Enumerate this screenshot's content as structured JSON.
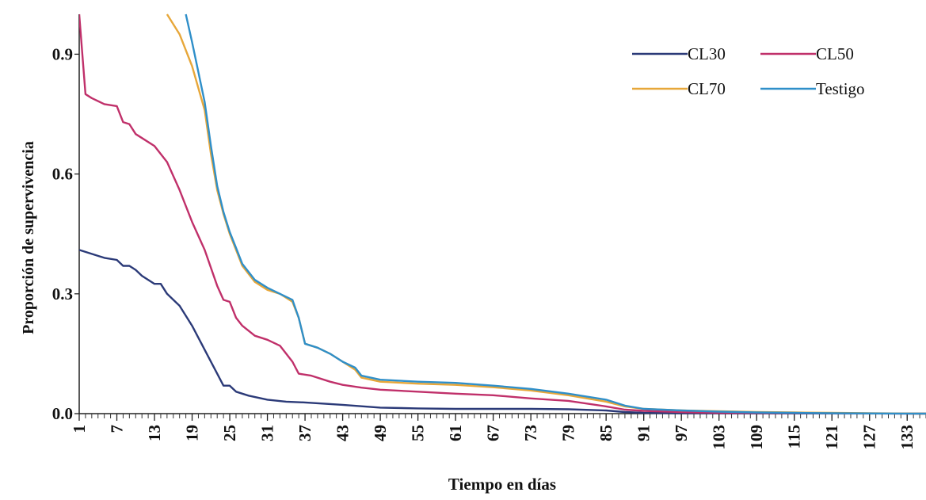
{
  "chart_data": {
    "type": "line",
    "xlabel": "Tiempo en días",
    "ylabel": "Proporción de supervivencia",
    "ylim": [
      0,
      1.0
    ],
    "xlim": [
      1,
      136
    ],
    "y_ticks": [
      0.0,
      0.3,
      0.6,
      0.9
    ],
    "y_tick_labels": [
      "0.0",
      "0.3",
      "0.6",
      "0.9"
    ],
    "x_ticks": [
      1,
      7,
      13,
      19,
      25,
      31,
      37,
      43,
      49,
      55,
      61,
      67,
      73,
      79,
      85,
      91,
      97,
      103,
      109,
      115,
      121,
      127,
      133
    ],
    "x_tick_labels": [
      "1",
      "7",
      "13",
      "19",
      "25",
      "31",
      "37",
      "43",
      "49",
      "55",
      "61",
      "67",
      "73",
      "79",
      "85",
      "91",
      "97",
      "103",
      "109",
      "115",
      "121",
      "127",
      "133"
    ],
    "grid": false,
    "legend_position": "top-right",
    "series": [
      {
        "name": "CL30",
        "color": "#2b3a78",
        "points": [
          [
            1,
            0.41
          ],
          [
            3,
            0.4
          ],
          [
            5,
            0.39
          ],
          [
            7,
            0.385
          ],
          [
            8,
            0.37
          ],
          [
            9,
            0.37
          ],
          [
            10,
            0.36
          ],
          [
            11,
            0.345
          ],
          [
            13,
            0.325
          ],
          [
            14,
            0.325
          ],
          [
            15,
            0.3
          ],
          [
            17,
            0.27
          ],
          [
            19,
            0.22
          ],
          [
            21,
            0.16
          ],
          [
            23,
            0.1
          ],
          [
            24,
            0.07
          ],
          [
            25,
            0.07
          ],
          [
            26,
            0.055
          ],
          [
            28,
            0.045
          ],
          [
            31,
            0.035
          ],
          [
            34,
            0.03
          ],
          [
            37,
            0.028
          ],
          [
            43,
            0.022
          ],
          [
            49,
            0.015
          ],
          [
            55,
            0.013
          ],
          [
            61,
            0.012
          ],
          [
            67,
            0.012
          ],
          [
            73,
            0.012
          ],
          [
            79,
            0.011
          ],
          [
            85,
            0.008
          ],
          [
            88,
            0.004
          ],
          [
            91,
            0.002
          ],
          [
            97,
            0.001
          ],
          [
            136,
            0.0
          ]
        ]
      },
      {
        "name": "CL50",
        "color": "#c0306a",
        "points": [
          [
            1,
            1.0
          ],
          [
            2,
            0.8
          ],
          [
            3,
            0.79
          ],
          [
            5,
            0.775
          ],
          [
            7,
            0.77
          ],
          [
            8,
            0.73
          ],
          [
            9,
            0.725
          ],
          [
            10,
            0.7
          ],
          [
            11,
            0.69
          ],
          [
            13,
            0.67
          ],
          [
            15,
            0.63
          ],
          [
            17,
            0.56
          ],
          [
            19,
            0.48
          ],
          [
            21,
            0.41
          ],
          [
            23,
            0.32
          ],
          [
            24,
            0.285
          ],
          [
            25,
            0.28
          ],
          [
            26,
            0.24
          ],
          [
            27,
            0.22
          ],
          [
            29,
            0.195
          ],
          [
            31,
            0.185
          ],
          [
            33,
            0.17
          ],
          [
            35,
            0.13
          ],
          [
            36,
            0.1
          ],
          [
            38,
            0.095
          ],
          [
            41,
            0.08
          ],
          [
            43,
            0.072
          ],
          [
            46,
            0.065
          ],
          [
            49,
            0.06
          ],
          [
            55,
            0.055
          ],
          [
            61,
            0.05
          ],
          [
            67,
            0.046
          ],
          [
            73,
            0.038
          ],
          [
            79,
            0.032
          ],
          [
            85,
            0.018
          ],
          [
            88,
            0.01
          ],
          [
            91,
            0.007
          ],
          [
            97,
            0.004
          ],
          [
            103,
            0.002
          ],
          [
            136,
            0.0
          ]
        ]
      },
      {
        "name": "CL70",
        "color": "#e7a73a",
        "points": [
          [
            15,
            1.0
          ],
          [
            17,
            0.95
          ],
          [
            19,
            0.87
          ],
          [
            21,
            0.76
          ],
          [
            22,
            0.65
          ],
          [
            23,
            0.56
          ],
          [
            24,
            0.5
          ],
          [
            25,
            0.45
          ],
          [
            26,
            0.41
          ],
          [
            27,
            0.37
          ],
          [
            29,
            0.33
          ],
          [
            31,
            0.31
          ],
          [
            33,
            0.3
          ],
          [
            35,
            0.28
          ],
          [
            36,
            0.24
          ],
          [
            37,
            0.175
          ],
          [
            39,
            0.165
          ],
          [
            41,
            0.15
          ],
          [
            43,
            0.13
          ],
          [
            45,
            0.11
          ],
          [
            46,
            0.09
          ],
          [
            49,
            0.08
          ],
          [
            55,
            0.075
          ],
          [
            61,
            0.072
          ],
          [
            67,
            0.066
          ],
          [
            73,
            0.058
          ],
          [
            79,
            0.046
          ],
          [
            85,
            0.03
          ],
          [
            88,
            0.018
          ],
          [
            91,
            0.012
          ],
          [
            97,
            0.008
          ],
          [
            103,
            0.006
          ],
          [
            109,
            0.004
          ],
          [
            115,
            0.003
          ],
          [
            121,
            0.002
          ],
          [
            127,
            0.001
          ],
          [
            136,
            0.0
          ]
        ]
      },
      {
        "name": "Testigo",
        "color": "#2f8fc9",
        "points": [
          [
            18,
            1.0
          ],
          [
            19,
            0.93
          ],
          [
            21,
            0.78
          ],
          [
            22,
            0.67
          ],
          [
            23,
            0.57
          ],
          [
            24,
            0.505
          ],
          [
            25,
            0.455
          ],
          [
            26,
            0.415
          ],
          [
            27,
            0.375
          ],
          [
            29,
            0.335
          ],
          [
            31,
            0.315
          ],
          [
            33,
            0.3
          ],
          [
            35,
            0.285
          ],
          [
            36,
            0.24
          ],
          [
            37,
            0.175
          ],
          [
            39,
            0.165
          ],
          [
            41,
            0.15
          ],
          [
            43,
            0.13
          ],
          [
            45,
            0.115
          ],
          [
            46,
            0.095
          ],
          [
            49,
            0.085
          ],
          [
            55,
            0.08
          ],
          [
            61,
            0.077
          ],
          [
            67,
            0.07
          ],
          [
            73,
            0.062
          ],
          [
            79,
            0.05
          ],
          [
            85,
            0.035
          ],
          [
            88,
            0.02
          ],
          [
            91,
            0.012
          ],
          [
            97,
            0.008
          ],
          [
            103,
            0.005
          ],
          [
            109,
            0.003
          ],
          [
            115,
            0.002
          ],
          [
            121,
            0.001
          ],
          [
            136,
            0.0
          ]
        ]
      }
    ]
  }
}
